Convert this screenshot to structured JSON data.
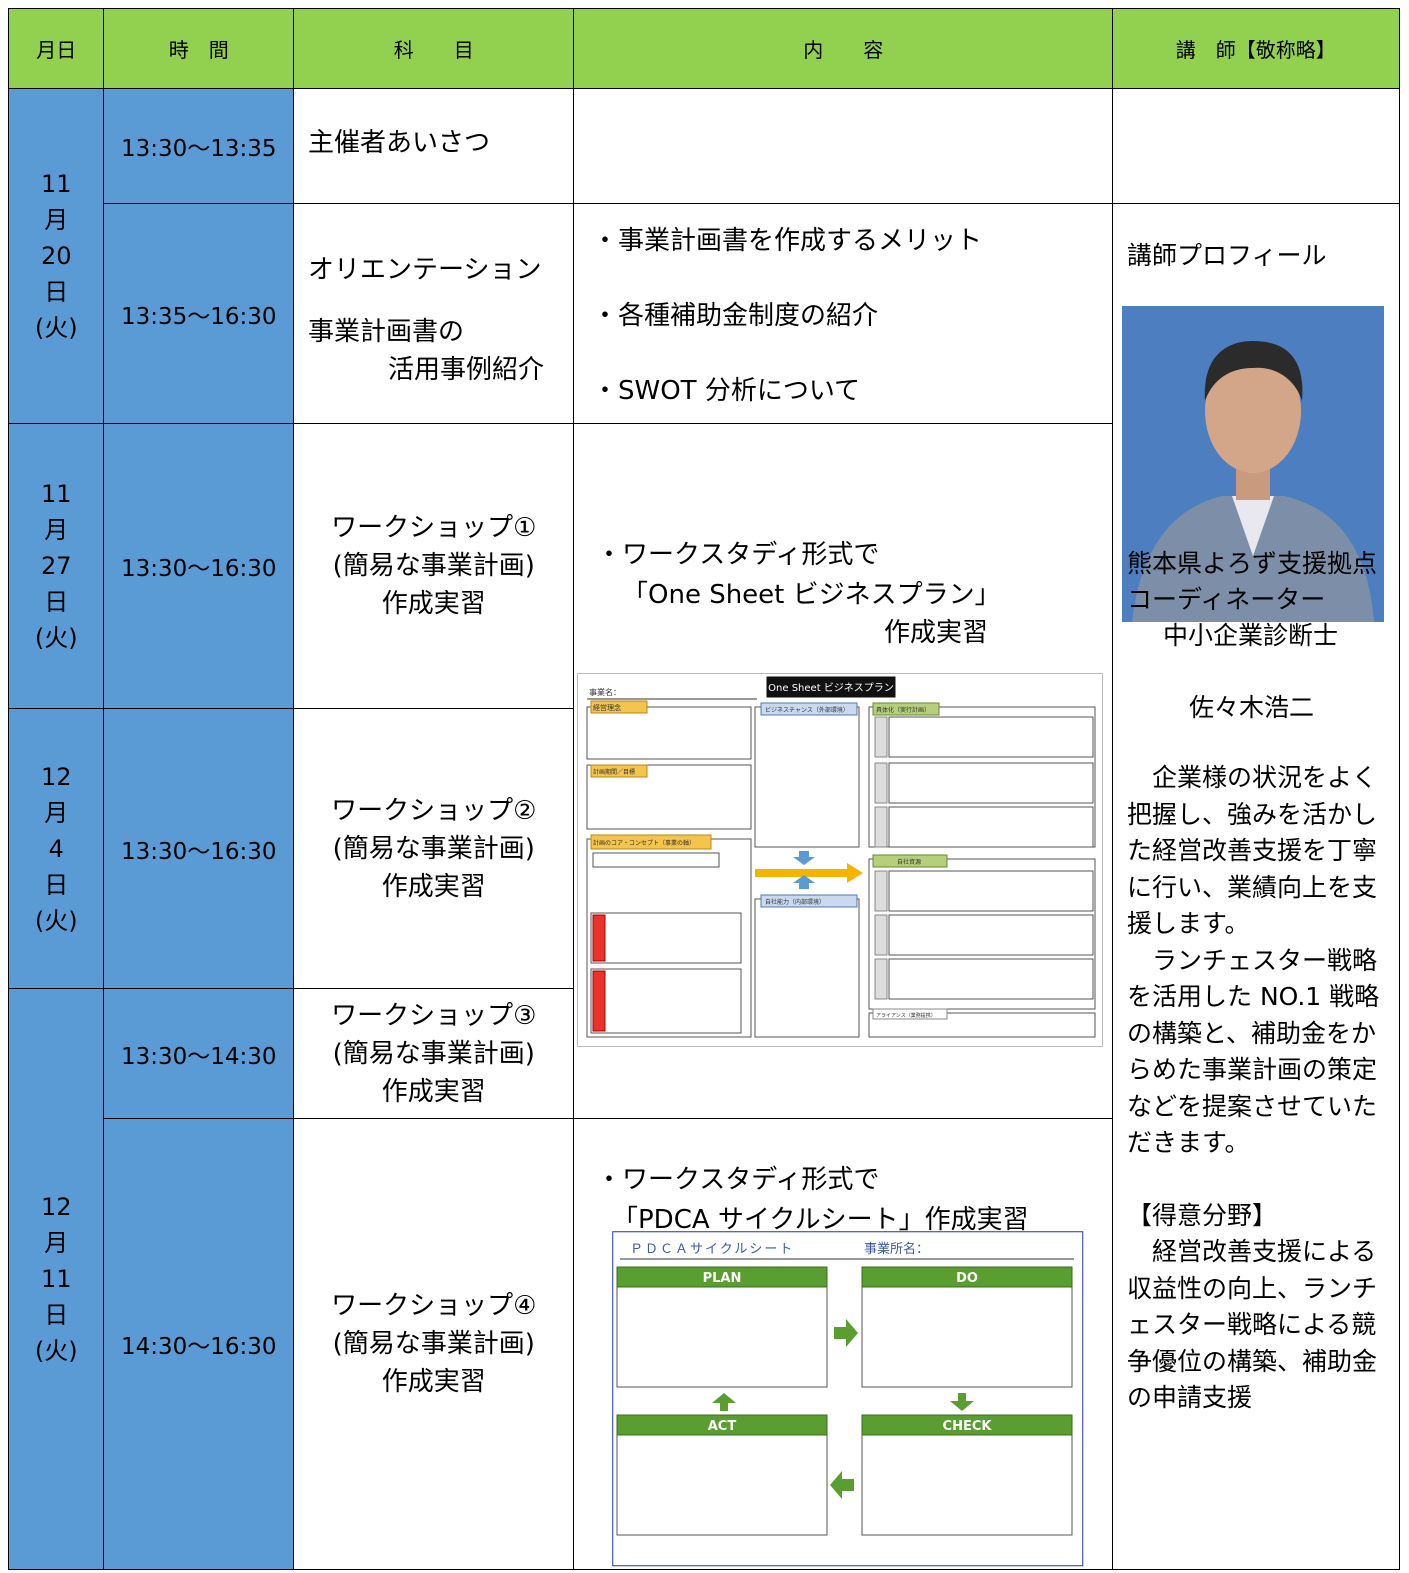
{
  "header": [
    "月日",
    "時　間",
    "科　　目",
    "内　　容",
    "講　師【敬称略】"
  ],
  "dates": [
    [
      "11",
      "月",
      "20",
      "日",
      "(火)"
    ],
    [
      "11",
      "月",
      "27",
      "日",
      "(火)"
    ],
    [
      "12",
      "月",
      "4",
      "日",
      "(火)"
    ],
    [
      "12",
      "月",
      "11",
      "日",
      "(火)"
    ]
  ],
  "sessions": [
    {
      "time": "13:30〜13:35",
      "subject": [
        "主催者あいさつ"
      ]
    },
    {
      "time": "13:35〜16:30",
      "subject": [
        "オリエンテーション",
        "事業計画書の",
        "活用事例紹介"
      ]
    },
    {
      "time": "13:30〜16:30",
      "subject": [
        "ワークショップ①",
        "(簡易な事業計画)",
        "作成実習"
      ]
    },
    {
      "time": "13:30〜16:30",
      "subject": [
        "ワークショップ②",
        "(簡易な事業計画)",
        "作成実習"
      ]
    },
    {
      "time": "13:30〜14:30",
      "subject": [
        "ワークショップ③",
        "(簡易な事業計画)",
        "作成実習"
      ]
    },
    {
      "time": "14:30〜16:30",
      "subject": [
        "ワークショップ④",
        "(簡易な事業計画)",
        "作成実習"
      ]
    }
  ],
  "contents": [
    [
      "・事業計画書を作成するメリット",
      "・各種補助金制度の紹介",
      "・SWOT 分析について"
    ],
    [
      "・ワークスタディ形式で",
      "「One Sheet ビジネスプラン」",
      "作成実習"
    ],
    [
      "・ワークスタディ形式で",
      "「PDCA サイクルシート」作成実習"
    ]
  ],
  "one_sheet": {
    "title": "One Sheet ビジネスプラン",
    "business_name": "事業名：",
    "labels": [
      "経営理念",
      "計画期間／目標",
      "計画のコア・コンセプト（事業の軸）",
      "ビジネスチャンス（外部環境）",
      "自社能力（内部環境）",
      "具体化（実行計画）",
      "自社資源",
      "アライアンス（業務提携）"
    ]
  },
  "pdca": {
    "title": "ＰＤＣＡサイクルシート",
    "office": "事業所名：",
    "plan": "PLAN",
    "do": "DO",
    "act": "ACT",
    "check": "CHECK"
  },
  "instructor": {
    "heading": "講師プロフィール",
    "roles": [
      "熊本県よろず支援拠点",
      "コーディネーター",
      "中小企業診断士"
    ],
    "name": "佐々木浩二",
    "bio": [
      "　企業様の状況をよく把握し、強みを活かした経営改善支援を丁寧に行い、業績向上を支援します。",
      "　ランチェスター戦略を活用した NO.1 戦略の構築と、補助金をからめた事業計画の策定などを提案させていただきます。",
      "【得意分野】",
      "　経営改善支援による収益性の向上、ランチェスター戦略による競争優位の構築、補助金の申請支援"
    ]
  }
}
